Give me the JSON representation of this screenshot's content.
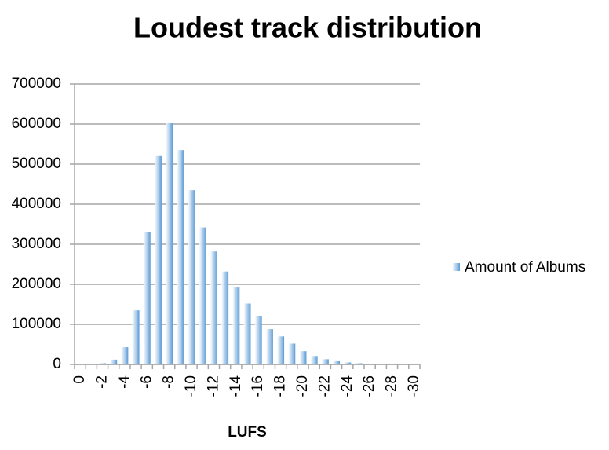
{
  "chart_data": {
    "type": "bar",
    "title": "Loudest track distribution",
    "x_label": "LUFS",
    "categories": [
      "0",
      null,
      "-2",
      null,
      "-4",
      null,
      "-6",
      null,
      "-8",
      null,
      "-10",
      null,
      "-12",
      null,
      "-14",
      null,
      "-16",
      null,
      "-18",
      null,
      "-20",
      null,
      "-22",
      null,
      "-24",
      null,
      "-26",
      null,
      "-28",
      null,
      "-30"
    ],
    "series": [
      {
        "name": "Amount of Albums",
        "color": "#5b9bd5",
        "values": [
          0,
          500,
          3000,
          12000,
          43000,
          135000,
          330000,
          520000,
          603000,
          535000,
          435000,
          342000,
          282000,
          232000,
          192000,
          152000,
          120000,
          88000,
          70000,
          52000,
          33000,
          21000,
          13000,
          8000,
          5000,
          3000,
          1000,
          500,
          0,
          0,
          0
        ]
      }
    ],
    "ylim": [
      0,
      700000
    ],
    "yticks": [
      0,
      100000,
      200000,
      300000,
      400000,
      500000,
      600000,
      700000
    ],
    "grid": true,
    "legend": "right"
  }
}
